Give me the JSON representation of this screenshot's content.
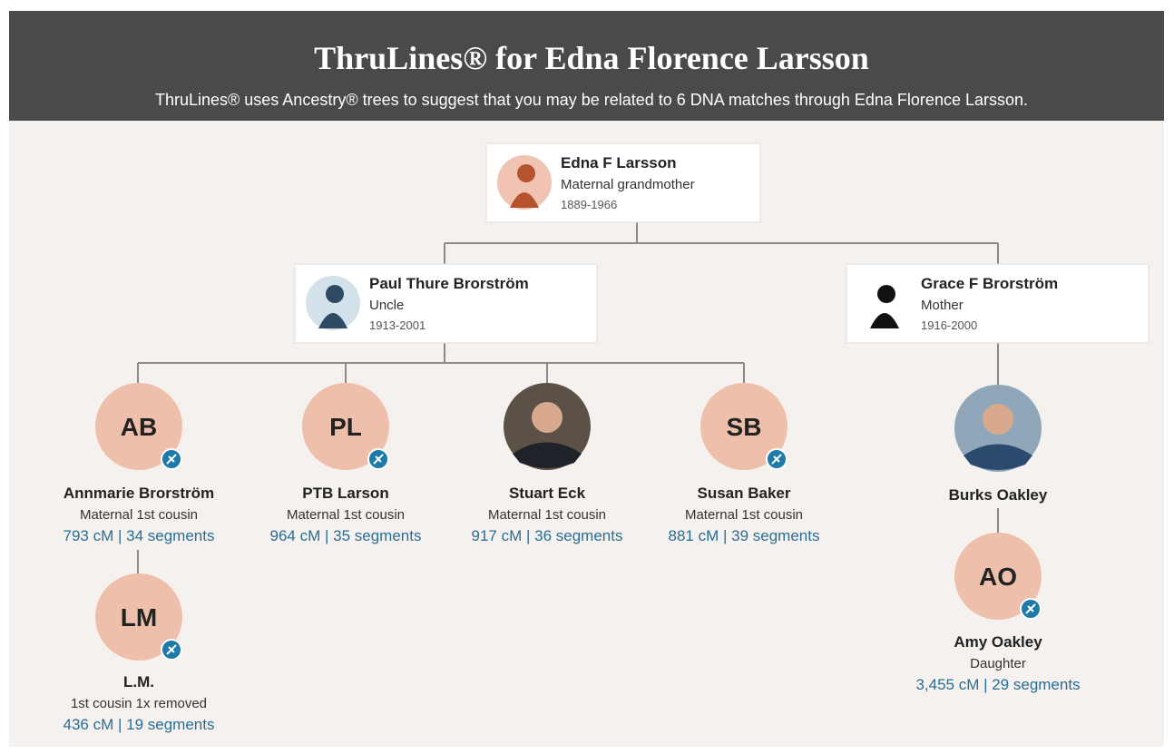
{
  "header": {
    "title": "ThruLines® for Edna Florence Larsson",
    "subtitle": "ThruLines® uses Ancestry® trees to suggest that you may be related to 6 DNA matches through Edna Florence Larsson."
  },
  "ancestors": [
    {
      "name": "Edna F Larsson",
      "relation": "Maternal grandmother",
      "years": "1889-1966"
    },
    {
      "name": "Paul Thure Brorström",
      "relation": "Uncle",
      "years": "1913-2001"
    },
    {
      "name": "Grace F Brorström",
      "relation": "Mother",
      "years": "1916-2000"
    }
  ],
  "matches": [
    {
      "initials": "AB",
      "name": "Annmarie Brorström",
      "relation": "Maternal 1st cousin",
      "shared": "793 cM | 34 segments"
    },
    {
      "initials": "PL",
      "name": "PTB Larson",
      "relation": "Maternal 1st cousin",
      "shared": "964 cM | 35 segments"
    },
    {
      "name": "Stuart Eck",
      "relation": "Maternal 1st cousin",
      "shared": "917 cM | 36 segments"
    },
    {
      "initials": "SB",
      "name": "Susan Baker",
      "relation": "Maternal 1st cousin",
      "shared": "881 cM | 39 segments"
    },
    {
      "name": "Burks Oakley"
    },
    {
      "initials": "LM",
      "name": "L.M.",
      "relation": "1st cousin 1x removed",
      "shared": "436 cM | 19 segments"
    },
    {
      "initials": "AO",
      "name": "Amy Oakley",
      "relation": "Daughter",
      "shared": "3,455 cM | 29 segments"
    }
  ]
}
